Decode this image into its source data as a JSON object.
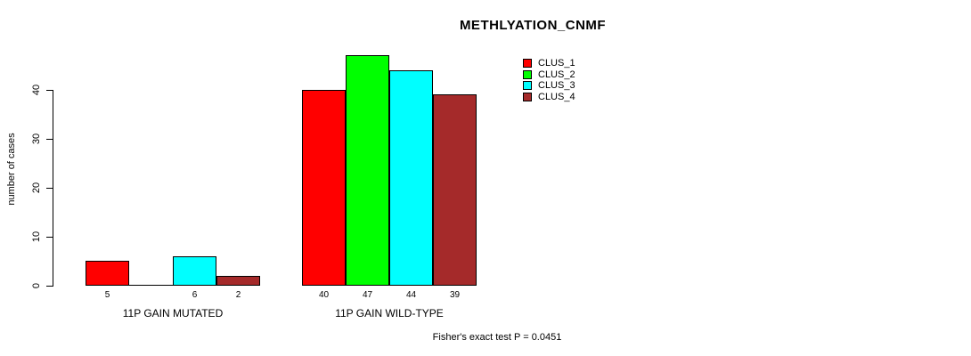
{
  "title": "METHLYATION_CNMF",
  "footnote": "Fisher's exact test P = 0.0451",
  "chart_data": {
    "type": "bar",
    "title": "METHLYATION_CNMF",
    "ylabel": "number of cases",
    "xlabel": "",
    "categories": [
      "11P GAIN MUTATED",
      "11P GAIN WILD-TYPE"
    ],
    "series": [
      {
        "name": "CLUS_1",
        "color": "#FF0000",
        "values": [
          5,
          40
        ]
      },
      {
        "name": "CLUS_2",
        "color": "#00FF00",
        "values": [
          0,
          47
        ]
      },
      {
        "name": "CLUS_3",
        "color": "#00FFFF",
        "values": [
          6,
          44
        ]
      },
      {
        "name": "CLUS_4",
        "color": "#A52A2A",
        "values": [
          2,
          39
        ]
      }
    ],
    "bar_value_labels": [
      [
        "5",
        "",
        "6",
        "2"
      ],
      [
        "40",
        "47",
        "44",
        "39"
      ]
    ],
    "yticks": [
      0,
      10,
      20,
      30,
      40
    ],
    "ylim": [
      0,
      47
    ],
    "grid": false,
    "legend_position": "top-right",
    "annotation": "Fisher's exact test P = 0.0451",
    "axis_color": "#000000",
    "bar_border_color": "#000000"
  }
}
